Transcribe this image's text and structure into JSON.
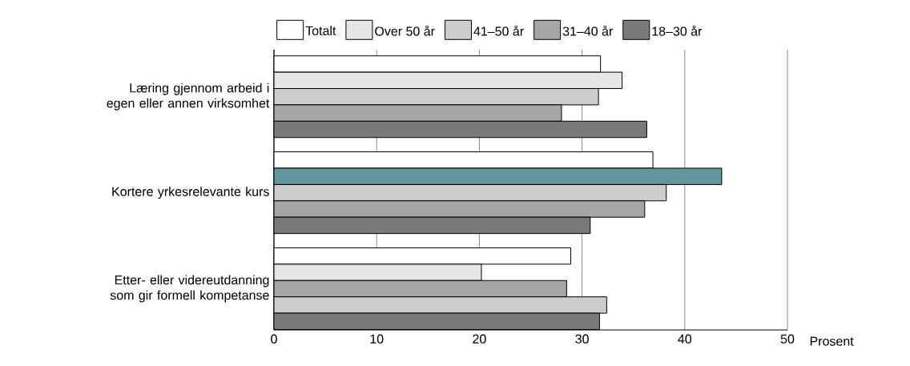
{
  "chart_data": {
    "type": "bar",
    "orientation": "horizontal",
    "categories": [
      "Læring gjennom arbeid i egen eller annen virksomhet",
      "Kortere yrkesrelevante kurs",
      "Etter- eller videreutdanning som gir formell kompetanse"
    ],
    "series": [
      {
        "name": "Totalt",
        "color": "#ffffff",
        "values": [
          31.8,
          36.9,
          28.9
        ]
      },
      {
        "name": "Over 50 år",
        "color": "#e6e6e6",
        "colors": [
          "#e6e6e6",
          "#6496a0",
          "#e6e6e6"
        ],
        "values": [
          33.9,
          43.6,
          20.2
        ]
      },
      {
        "name": "41–50 år",
        "color": "#cccccc",
        "colors": [
          "#cccccc",
          "#cccccc",
          "#a6a6a6"
        ],
        "values": [
          31.6,
          38.2,
          28.5
        ]
      },
      {
        "name": "31–40 år",
        "color": "#a6a6a6",
        "colors": [
          "#a6a6a6",
          "#a6a6a6",
          "#cccccc"
        ],
        "values": [
          28.0,
          36.1,
          32.4
        ]
      },
      {
        "name": "18–30 år",
        "color": "#7a7a7a",
        "values": [
          36.3,
          30.8,
          31.7
        ]
      }
    ],
    "xlabel": "Prosent",
    "xlim": [
      0,
      50
    ],
    "xticks": [
      0,
      10,
      20,
      30,
      40,
      50
    ],
    "grid": "x",
    "legend": "top"
  }
}
